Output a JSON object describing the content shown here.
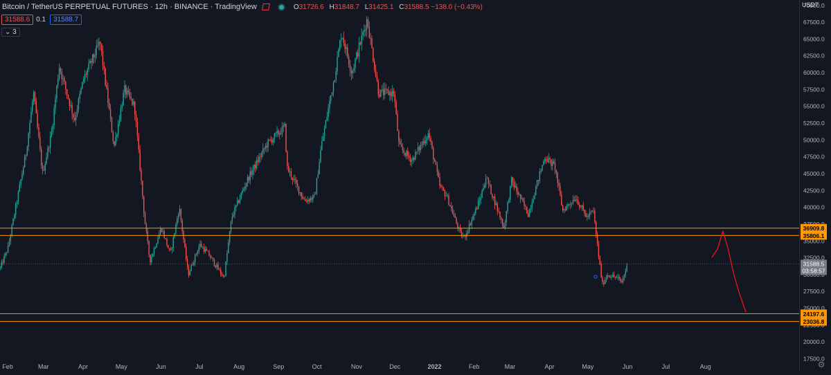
{
  "header": {
    "title": "Bitcoin / TetherUS PERPETUAL FUTURES · 12h · BINANCE · TradingView",
    "ohlc": [
      {
        "k": "O",
        "v": "31726.6"
      },
      {
        "k": "H",
        "v": "31848.7"
      },
      {
        "k": "L",
        "v": "31425.1"
      },
      {
        "k": "C",
        "v": "31588.5"
      }
    ],
    "change": "−138.0 (−0.43%)"
  },
  "trade": {
    "sell_price": "31588.6",
    "spread": "0.1",
    "buy_price": "31588.7"
  },
  "layers_label": "3",
  "currency": "USDT",
  "colors": {
    "background": "#131722",
    "up": "#26a69a",
    "down": "#ef5350",
    "level_line": "#ff9800",
    "drawing": "#f01414",
    "axis_text": "#b2b5be"
  },
  "icons": [
    "flag-icon",
    "market-status-icon",
    "gear-icon",
    "circle-marker-icon"
  ],
  "chart_data": {
    "type": "candlestick",
    "x_ticks": [
      "Feb",
      "Mar",
      "Apr",
      "May",
      "Jun",
      "Jul",
      "Aug",
      "Sep",
      "Oct",
      "Nov",
      "Dec",
      "2022",
      "Feb",
      "Mar",
      "Apr",
      "May",
      "Jun",
      "Jul",
      "Aug"
    ],
    "y_ticks": [
      "70000.0",
      "67500.0",
      "65000.0",
      "62500.0",
      "60000.0",
      "57500.0",
      "55000.0",
      "52500.0",
      "50000.0",
      "47500.0",
      "45000.0",
      "42500.0",
      "40000.0",
      "37500.0",
      "35000.0",
      "32500.0",
      "30000.0",
      "27500.0",
      "25000.0",
      "22500.0",
      "20000.0",
      "17500.0"
    ],
    "y_range": [
      15600,
      70800
    ],
    "price_path": [
      [
        "2021-01-26",
        31000
      ],
      [
        "2021-02-01",
        34000
      ],
      [
        "2021-02-08",
        41000
      ],
      [
        "2021-02-15",
        48000
      ],
      [
        "2021-02-21",
        57000
      ],
      [
        "2021-02-28",
        45000
      ],
      [
        "2021-03-07",
        51000
      ],
      [
        "2021-03-13",
        61000
      ],
      [
        "2021-03-25",
        53000
      ],
      [
        "2021-04-01",
        59000
      ],
      [
        "2021-04-14",
        64500
      ],
      [
        "2021-04-25",
        49000
      ],
      [
        "2021-05-03",
        57500
      ],
      [
        "2021-05-11",
        55000
      ],
      [
        "2021-05-19",
        38000
      ],
      [
        "2021-05-23",
        32000
      ],
      [
        "2021-06-01",
        37000
      ],
      [
        "2021-06-08",
        33000
      ],
      [
        "2021-06-15",
        40000
      ],
      [
        "2021-06-22",
        30000
      ],
      [
        "2021-07-01",
        34500
      ],
      [
        "2021-07-08",
        33000
      ],
      [
        "2021-07-20",
        29500
      ],
      [
        "2021-07-26",
        38500
      ],
      [
        "2021-08-07",
        44000
      ],
      [
        "2021-08-23",
        49500
      ],
      [
        "2021-09-06",
        52000
      ],
      [
        "2021-09-07",
        46000
      ],
      [
        "2021-09-21",
        41000
      ],
      [
        "2021-09-29",
        41500
      ],
      [
        "2021-10-04",
        49000
      ],
      [
        "2021-10-15",
        60000
      ],
      [
        "2021-10-20",
        66000
      ],
      [
        "2021-10-28",
        60000
      ],
      [
        "2021-11-09",
        68000
      ],
      [
        "2021-11-18",
        57000
      ],
      [
        "2021-11-30",
        57000
      ],
      [
        "2021-12-04",
        49000
      ],
      [
        "2021-12-14",
        47000
      ],
      [
        "2021-12-27",
        51000
      ],
      [
        "2022-01-05",
        43000
      ],
      [
        "2022-01-10",
        41800
      ],
      [
        "2022-01-21",
        36000
      ],
      [
        "2022-01-24",
        35500
      ],
      [
        "2022-02-05",
        41000
      ],
      [
        "2022-02-10",
        44500
      ],
      [
        "2022-02-24",
        37000
      ],
      [
        "2022-03-02",
        44000
      ],
      [
        "2022-03-15",
        39000
      ],
      [
        "2022-03-28",
        47500
      ],
      [
        "2022-04-05",
        46000
      ],
      [
        "2022-04-11",
        39500
      ],
      [
        "2022-04-21",
        41500
      ],
      [
        "2022-04-30",
        38500
      ],
      [
        "2022-05-05",
        39500
      ],
      [
        "2022-05-09",
        33000
      ],
      [
        "2022-05-12",
        28500
      ],
      [
        "2022-05-16",
        30000
      ],
      [
        "2022-05-24",
        29500
      ],
      [
        "2022-05-27",
        28800
      ],
      [
        "2022-06-01",
        31588.5
      ]
    ],
    "last_price": "31588.5",
    "countdown": "03:58:57",
    "horizontal_levels": [
      "36909.8",
      "35806.1",
      "24197.6",
      "23036.8"
    ],
    "drawing": "hand-drawn projection up to ~35800 then down to ~23000",
    "marker": "small blue circle near 29000"
  }
}
